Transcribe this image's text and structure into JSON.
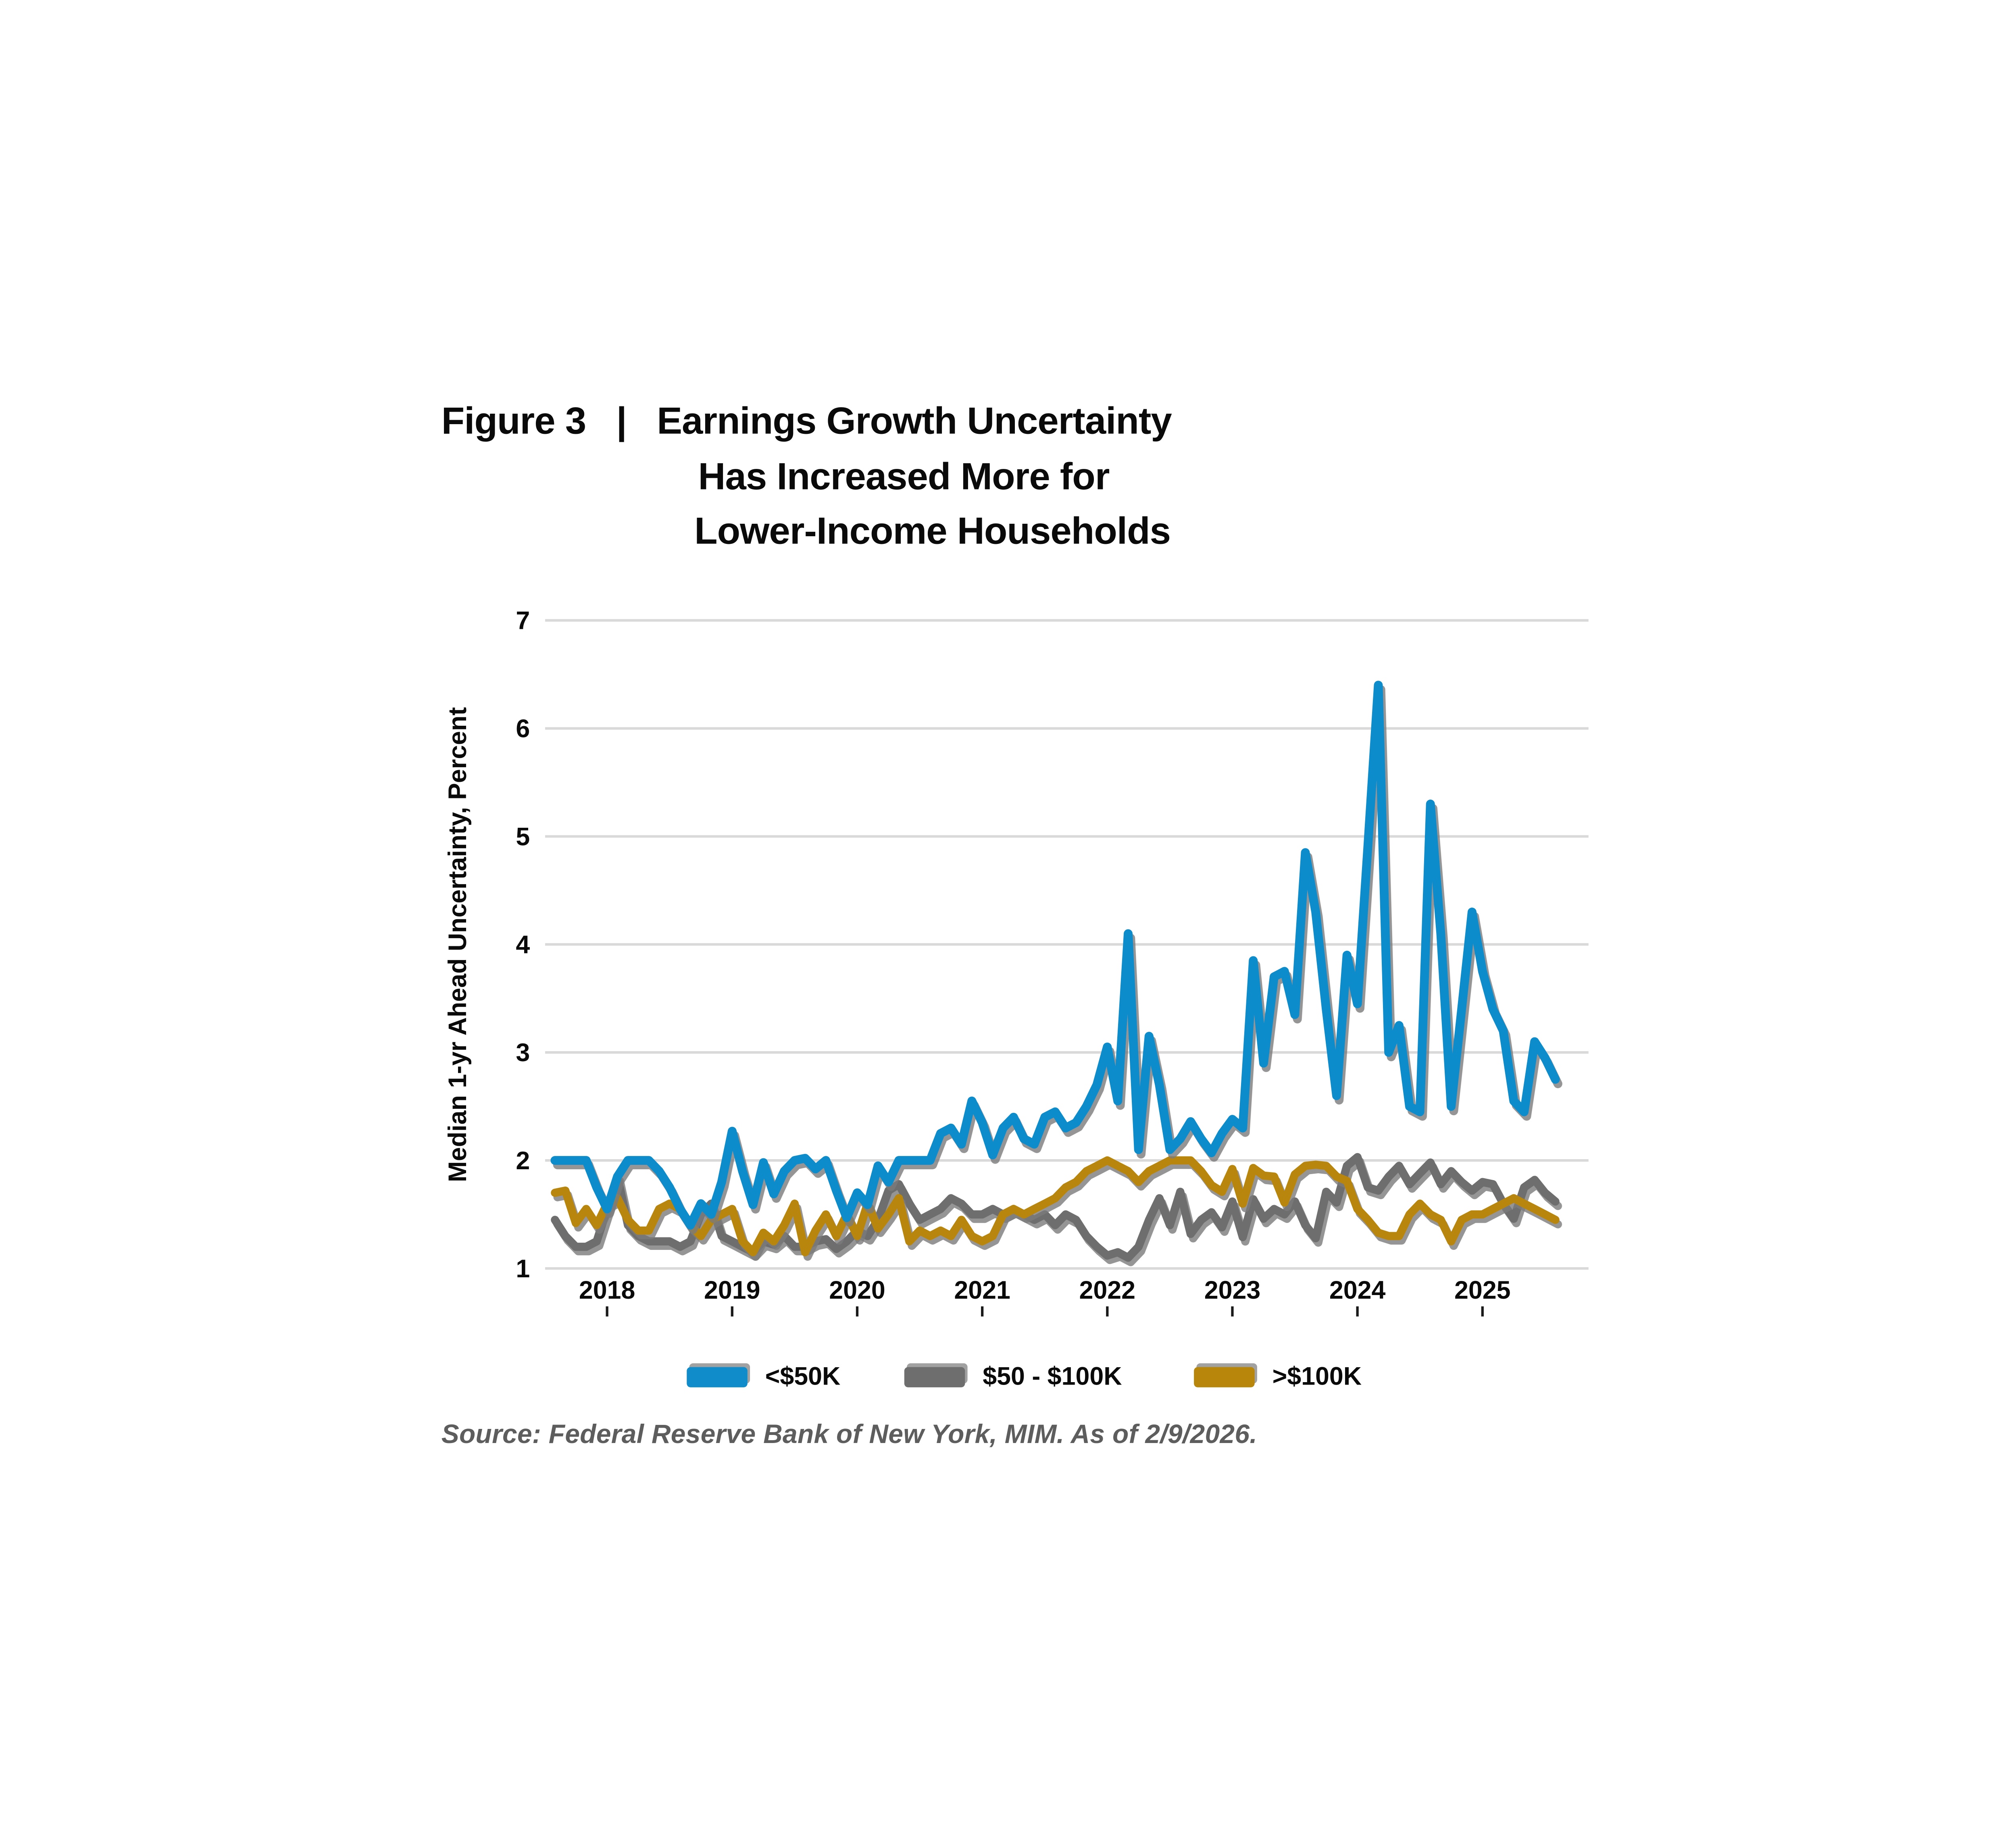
{
  "title": {
    "figure_label": "Figure 3",
    "separator": "|",
    "line1": "Earnings Growth Uncertainty",
    "line2": "Has Increased More for",
    "line3": "Lower-Income Households"
  },
  "y_axis": {
    "title": "Median 1-yr Ahead Uncertainty, Percent",
    "ticks": [
      1,
      2,
      3,
      4,
      5,
      6,
      7
    ],
    "min": 1,
    "max": 7
  },
  "x_axis": {
    "tick_labels": [
      "2018",
      "2019",
      "2020",
      "2021",
      "2022",
      "2023",
      "2024",
      "2025"
    ]
  },
  "legend": [
    {
      "label": "<$50K",
      "color": "#108ccb"
    },
    {
      "label": "$50 - $100K",
      "color": "#6e6e6e"
    },
    {
      "label": ">$100K",
      "color": "#b8860b"
    }
  ],
  "source": "Source: Federal Reserve Bank of New York, MIM. As of 2/9/2026.",
  "colors": {
    "blue": "#108ccb",
    "gray": "#6e6e6e",
    "gold": "#b8860b",
    "gridline": "#d9d9d9",
    "tick": "#1a1a1a",
    "title_text": "#0a0a0a",
    "source_text": "#5d5d5d"
  },
  "chart_data": {
    "type": "line",
    "title": "Earnings Growth Uncertainty Has Increased More for Lower-Income Households",
    "ylabel": "Median 1-yr Ahead Uncertainty, Percent",
    "ylim": [
      1,
      7
    ],
    "grid": "horizontal",
    "legend_position": "bottom",
    "x_unit": "month",
    "n_points": 97,
    "x_tick_labels": [
      "2018",
      "2019",
      "2020",
      "2021",
      "2022",
      "2023",
      "2024",
      "2025"
    ],
    "x_tick_positions": [
      5,
      17,
      29,
      41,
      53,
      65,
      77,
      89
    ],
    "series": [
      {
        "name": "$50 - $100K",
        "color": "#6e6e6e",
        "values": [
          1.45,
          1.3,
          1.2,
          1.2,
          1.25,
          1.55,
          1.85,
          1.4,
          1.3,
          1.25,
          1.25,
          1.25,
          1.2,
          1.25,
          1.5,
          1.6,
          1.3,
          1.25,
          1.2,
          1.15,
          1.25,
          1.22,
          1.3,
          1.2,
          1.2,
          1.25,
          1.27,
          1.18,
          1.25,
          1.35,
          1.3,
          1.45,
          1.72,
          1.78,
          1.6,
          1.45,
          1.5,
          1.55,
          1.65,
          1.6,
          1.5,
          1.5,
          1.55,
          1.5,
          1.55,
          1.5,
          1.45,
          1.5,
          1.4,
          1.5,
          1.45,
          1.3,
          1.2,
          1.12,
          1.15,
          1.1,
          1.2,
          1.45,
          1.65,
          1.4,
          1.71,
          1.32,
          1.45,
          1.52,
          1.38,
          1.62,
          1.29,
          1.64,
          1.46,
          1.55,
          1.5,
          1.62,
          1.4,
          1.28,
          1.71,
          1.61,
          1.95,
          2.03,
          1.75,
          1.72,
          1.85,
          1.95,
          1.78,
          1.88,
          1.98,
          1.78,
          1.9,
          1.8,
          1.72,
          1.8,
          1.78,
          1.6,
          1.46,
          1.75,
          1.82,
          1.7,
          1.62
        ]
      },
      {
        "name": ">$100K",
        "color": "#b8860b",
        "values": [
          1.7,
          1.72,
          1.42,
          1.55,
          1.4,
          1.6,
          1.65,
          1.45,
          1.35,
          1.35,
          1.55,
          1.6,
          1.55,
          1.4,
          1.3,
          1.45,
          1.5,
          1.55,
          1.25,
          1.15,
          1.33,
          1.25,
          1.4,
          1.6,
          1.15,
          1.35,
          1.5,
          1.3,
          1.5,
          1.3,
          1.6,
          1.37,
          1.5,
          1.65,
          1.25,
          1.35,
          1.3,
          1.35,
          1.3,
          1.45,
          1.3,
          1.25,
          1.3,
          1.5,
          1.55,
          1.5,
          1.55,
          1.6,
          1.65,
          1.75,
          1.8,
          1.9,
          1.95,
          2.0,
          1.95,
          1.9,
          1.8,
          1.9,
          1.95,
          2.0,
          2.0,
          2.0,
          1.9,
          1.77,
          1.71,
          1.92,
          1.6,
          1.93,
          1.86,
          1.85,
          1.61,
          1.87,
          1.95,
          1.96,
          1.95,
          1.85,
          1.81,
          1.55,
          1.45,
          1.33,
          1.3,
          1.3,
          1.5,
          1.6,
          1.5,
          1.45,
          1.25,
          1.45,
          1.5,
          1.5,
          1.55,
          1.6,
          1.65,
          1.6,
          1.55,
          1.5,
          1.45
        ]
      },
      {
        "name": "<$50K",
        "color": "#108ccb",
        "values": [
          2.0,
          2.0,
          2.0,
          2.0,
          1.75,
          1.55,
          1.85,
          2.0,
          2.0,
          2.0,
          1.9,
          1.75,
          1.55,
          1.4,
          1.6,
          1.5,
          1.8,
          2.27,
          1.9,
          1.59,
          1.98,
          1.69,
          1.9,
          2.0,
          2.02,
          1.92,
          2.0,
          1.72,
          1.47,
          1.7,
          1.59,
          1.95,
          1.8,
          2.0,
          2.0,
          2.0,
          2.0,
          2.25,
          2.3,
          2.15,
          2.55,
          2.35,
          2.05,
          2.3,
          2.4,
          2.2,
          2.15,
          2.4,
          2.45,
          2.3,
          2.35,
          2.5,
          2.7,
          3.05,
          2.55,
          4.1,
          2.1,
          3.15,
          2.7,
          2.1,
          2.2,
          2.36,
          2.2,
          2.07,
          2.25,
          2.38,
          2.3,
          3.85,
          2.9,
          3.7,
          3.75,
          3.35,
          4.85,
          4.3,
          3.4,
          2.6,
          3.9,
          3.45,
          4.9,
          6.4,
          3.0,
          3.25,
          2.5,
          2.45,
          5.3,
          4.1,
          2.5,
          3.4,
          4.3,
          3.75,
          3.4,
          3.2,
          2.55,
          2.45,
          3.1,
          2.95,
          2.75
        ]
      }
    ]
  }
}
